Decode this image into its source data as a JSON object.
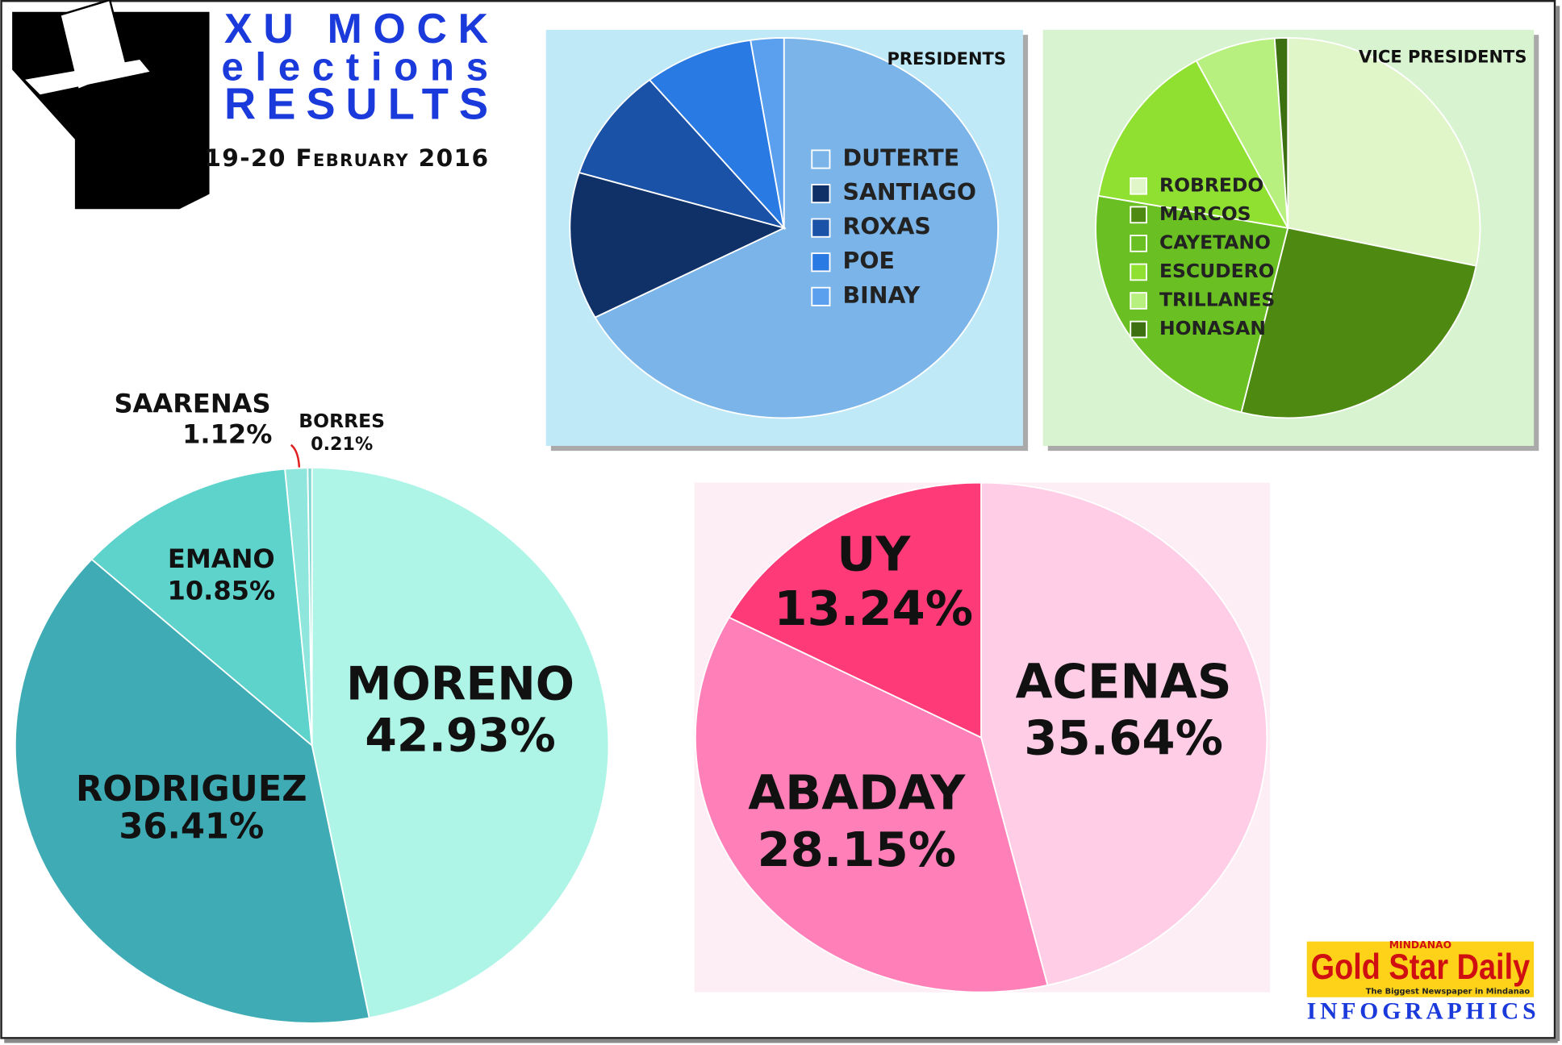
{
  "header": {
    "line1": "XU MOCK",
    "line2": "elections",
    "line3": "RESULTS",
    "date": "19-20 February 2016"
  },
  "chart_data": [
    {
      "type": "pie",
      "title": "PRESIDENTS",
      "categories": [
        "DUTERTE",
        "SANTIAGO",
        "ROXAS",
        "POE",
        "BINAY"
      ],
      "values": [
        67.2,
        12.5,
        9.5,
        8.3,
        2.5
      ],
      "colors": [
        "#7ab4e8",
        "#0f3168",
        "#1a52a8",
        "#2a7ae4",
        "#5aa0ee"
      ],
      "legend": "right"
    },
    {
      "type": "pie",
      "title": "VICE PRESIDENTS",
      "categories": [
        "ROBREDO",
        "MARCOS",
        "CAYETANO",
        "ESCUDERO",
        "TRILLANES",
        "HONASAN"
      ],
      "values": [
        28.2,
        25.7,
        23.8,
        14.4,
        6.8,
        1.1
      ],
      "colors": [
        "#e0f5c8",
        "#4e8a12",
        "#6abf22",
        "#8fe030",
        "#b8f080",
        "#3d7010"
      ],
      "legend": "right"
    },
    {
      "type": "pie",
      "categories": [
        "MORENO",
        "RODRIGUEZ",
        "EMANO",
        "SAARENAS",
        "BORRES"
      ],
      "values": [
        42.93,
        36.41,
        10.85,
        1.12,
        0.21
      ],
      "value_labels": [
        "42.93%",
        "36.41%",
        "10.85%",
        "1.12%",
        "0.21%"
      ],
      "colors": [
        "#aef5e8",
        "#3fabb4",
        "#5ed3cc",
        "#8ee6dc",
        "#7fd8d0"
      ]
    },
    {
      "type": "pie",
      "categories": [
        "ACENAS",
        "ABADAY",
        "UY"
      ],
      "values": [
        35.64,
        28.15,
        13.24
      ],
      "value_labels": [
        "35.64%",
        "28.15%",
        "13.24%"
      ],
      "colors": [
        "#ffcde6",
        "#ff80b8",
        "#ff3a78"
      ]
    }
  ],
  "footer": {
    "kicker": "MINDANAO",
    "brand": "Gold Star Daily",
    "tagline": "The Biggest Newspaper in Mindanao",
    "section": "INFOGRAPHICS"
  }
}
